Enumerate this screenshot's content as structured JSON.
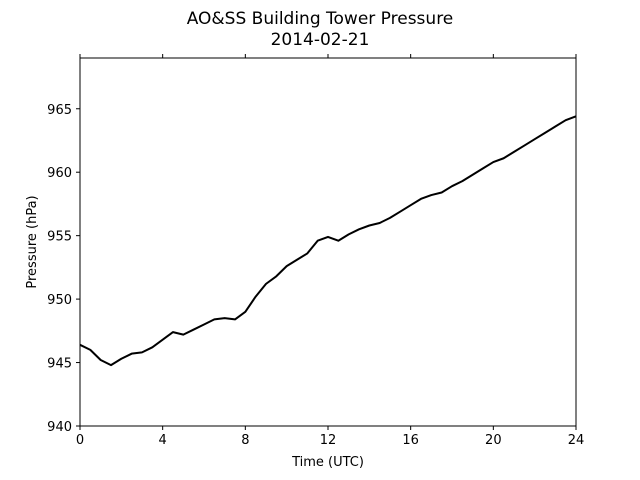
{
  "chart_data": {
    "type": "line",
    "title": "AO&SS Building Tower Pressure",
    "subtitle": "2014-02-21",
    "xlabel": "Time (UTC)",
    "ylabel": "Pressure (hPa)",
    "xlim": [
      0,
      24
    ],
    "ylim": [
      940,
      969
    ],
    "xticks": [
      0,
      4,
      8,
      12,
      16,
      20,
      24
    ],
    "yticks": [
      940,
      945,
      950,
      955,
      960,
      965
    ],
    "grid": false,
    "legend": "none",
    "line_color": "#000000",
    "series": [
      {
        "x": [
          0,
          0.5,
          1.0,
          1.5,
          2.0,
          2.5,
          3.0,
          3.5,
          4.0,
          4.5,
          5.0,
          5.5,
          6.0,
          6.5,
          7.0,
          7.5,
          8.0,
          8.5,
          9.0,
          9.5,
          10.0,
          10.5,
          11.0,
          11.5,
          12.0,
          12.5,
          13.0,
          13.5,
          14.0,
          14.5,
          15.0,
          15.5,
          16.0,
          16.5,
          17.0,
          17.5,
          18.0,
          18.5,
          19.0,
          19.5,
          20.0,
          20.5,
          21.0,
          21.5,
          22.0,
          22.5,
          23.0,
          23.5,
          24.0
        ],
        "values": [
          946.4,
          946.0,
          945.2,
          944.8,
          945.3,
          945.7,
          945.8,
          946.2,
          946.8,
          947.4,
          947.2,
          947.6,
          948.0,
          948.4,
          948.5,
          948.4,
          949.0,
          950.2,
          951.2,
          951.8,
          952.6,
          953.1,
          953.6,
          954.6,
          954.9,
          954.6,
          955.1,
          955.5,
          955.8,
          956.0,
          956.4,
          956.9,
          957.4,
          957.9,
          958.2,
          958.4,
          958.9,
          959.3,
          959.8,
          960.3,
          960.8,
          961.1,
          961.6,
          962.1,
          962.6,
          963.1,
          963.6,
          964.1,
          964.4
        ]
      }
    ]
  }
}
